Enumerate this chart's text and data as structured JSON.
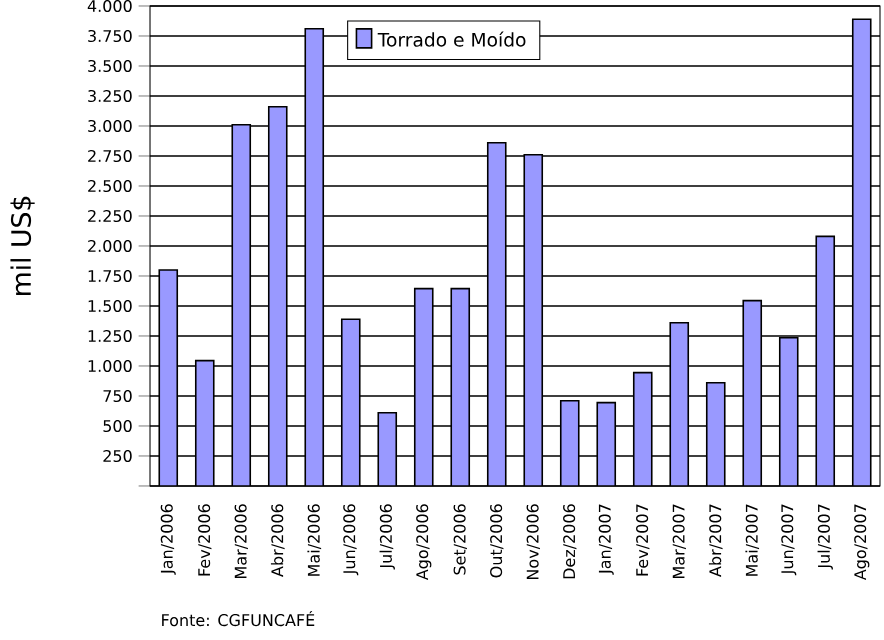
{
  "chart_data": {
    "type": "bar",
    "categories": [
      "Jan/2006",
      "Fev/2006",
      "Mar/2006",
      "Abr/2006",
      "Mai/2006",
      "Jun/2006",
      "Jul/2006",
      "Ago/2006",
      "Set/2006",
      "Out/2006",
      "Nov/2006",
      "Dez/2006",
      "Jan/2007",
      "Fev/2007",
      "Mar/2007",
      "Abr/2007",
      "Mai/2007",
      "Jun/2007",
      "Jul/2007",
      "Ago/2007"
    ],
    "series": [
      {
        "name": "Torrado e Moído",
        "color": "#9999ff",
        "values": [
          1800,
          1045,
          3010,
          3160,
          3810,
          1390,
          610,
          1645,
          1645,
          2860,
          2760,
          710,
          695,
          945,
          1360,
          860,
          1545,
          1235,
          2080,
          3890
        ]
      }
    ],
    "ylabel": "mil US$",
    "ylim": [
      0,
      4000
    ],
    "yticks": [
      {
        "value": 0,
        "label": null
      },
      250,
      500,
      750,
      {
        "value": 1000,
        "label": "1.000"
      },
      {
        "value": 1250,
        "label": "1.250"
      },
      {
        "value": 1500,
        "label": "1.500"
      },
      {
        "value": 1750,
        "label": "1.750"
      },
      {
        "value": 2000,
        "label": "2.000"
      },
      {
        "value": 2250,
        "label": "2.250"
      },
      {
        "value": 2500,
        "label": "2.500"
      },
      {
        "value": 2750,
        "label": "2.750"
      },
      {
        "value": 3000,
        "label": "3.000"
      },
      {
        "value": 3250,
        "label": "3.250"
      },
      {
        "value": 3500,
        "label": "3.500"
      },
      {
        "value": 3750,
        "label": "3.750"
      },
      {
        "value": 4000,
        "label": "4.000"
      }
    ],
    "grid": "y",
    "legend": "top",
    "annotations": [
      "Fonte: CGFUNCAFÉ"
    ]
  }
}
